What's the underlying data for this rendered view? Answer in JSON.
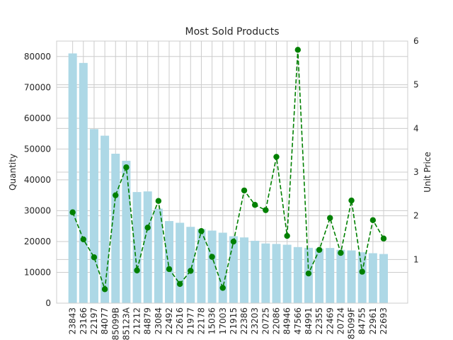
{
  "chart_data": {
    "type": "bar",
    "title": "Most Sold Products",
    "xlabel": "",
    "ylabel": "Quantity",
    "y2label": "Unit Price",
    "ylim": [
      0,
      85000
    ],
    "y2lim": [
      0,
      6
    ],
    "yticks": [
      0,
      10000,
      20000,
      30000,
      40000,
      50000,
      60000,
      70000,
      80000
    ],
    "y2ticks": [
      1,
      2,
      3,
      4,
      5,
      6
    ],
    "grid": true,
    "categories": [
      "23843",
      "23166",
      "22197",
      "84077",
      "85099B",
      "85123A",
      "21212",
      "84879",
      "23084",
      "22492",
      "22616",
      "21977",
      "22178",
      "15036",
      "17003",
      "21915",
      "22386",
      "23203",
      "20725",
      "22086",
      "84946",
      "47566",
      "84991",
      "22355",
      "22469",
      "20724",
      "85099F",
      "84755",
      "22961",
      "22693"
    ],
    "bar_color": "#add8e6",
    "line_color": "#008000",
    "series": [
      {
        "kind": "bar",
        "axis": "left",
        "values": [
          80995,
          77916,
          56450,
          54319,
          48474,
          46181,
          36039,
          36237,
          30646,
          26633,
          26076,
          24753,
          24058,
          23541,
          22857,
          21709,
          21321,
          20231,
          19358,
          19210,
          18950,
          18196,
          17949,
          17700,
          17900,
          17300,
          17100,
          16500,
          16200,
          15943
        ]
      },
      {
        "kind": "line",
        "axis": "right",
        "values": [
          2.08,
          1.46,
          1.05,
          0.32,
          2.47,
          3.11,
          0.75,
          1.73,
          2.34,
          0.78,
          0.44,
          0.74,
          1.65,
          1.06,
          0.35,
          1.41,
          2.58,
          2.25,
          2.13,
          3.35,
          1.54,
          5.8,
          0.68,
          1.22,
          1.95,
          1.15,
          2.35,
          0.72,
          1.9,
          1.48
        ]
      }
    ]
  }
}
